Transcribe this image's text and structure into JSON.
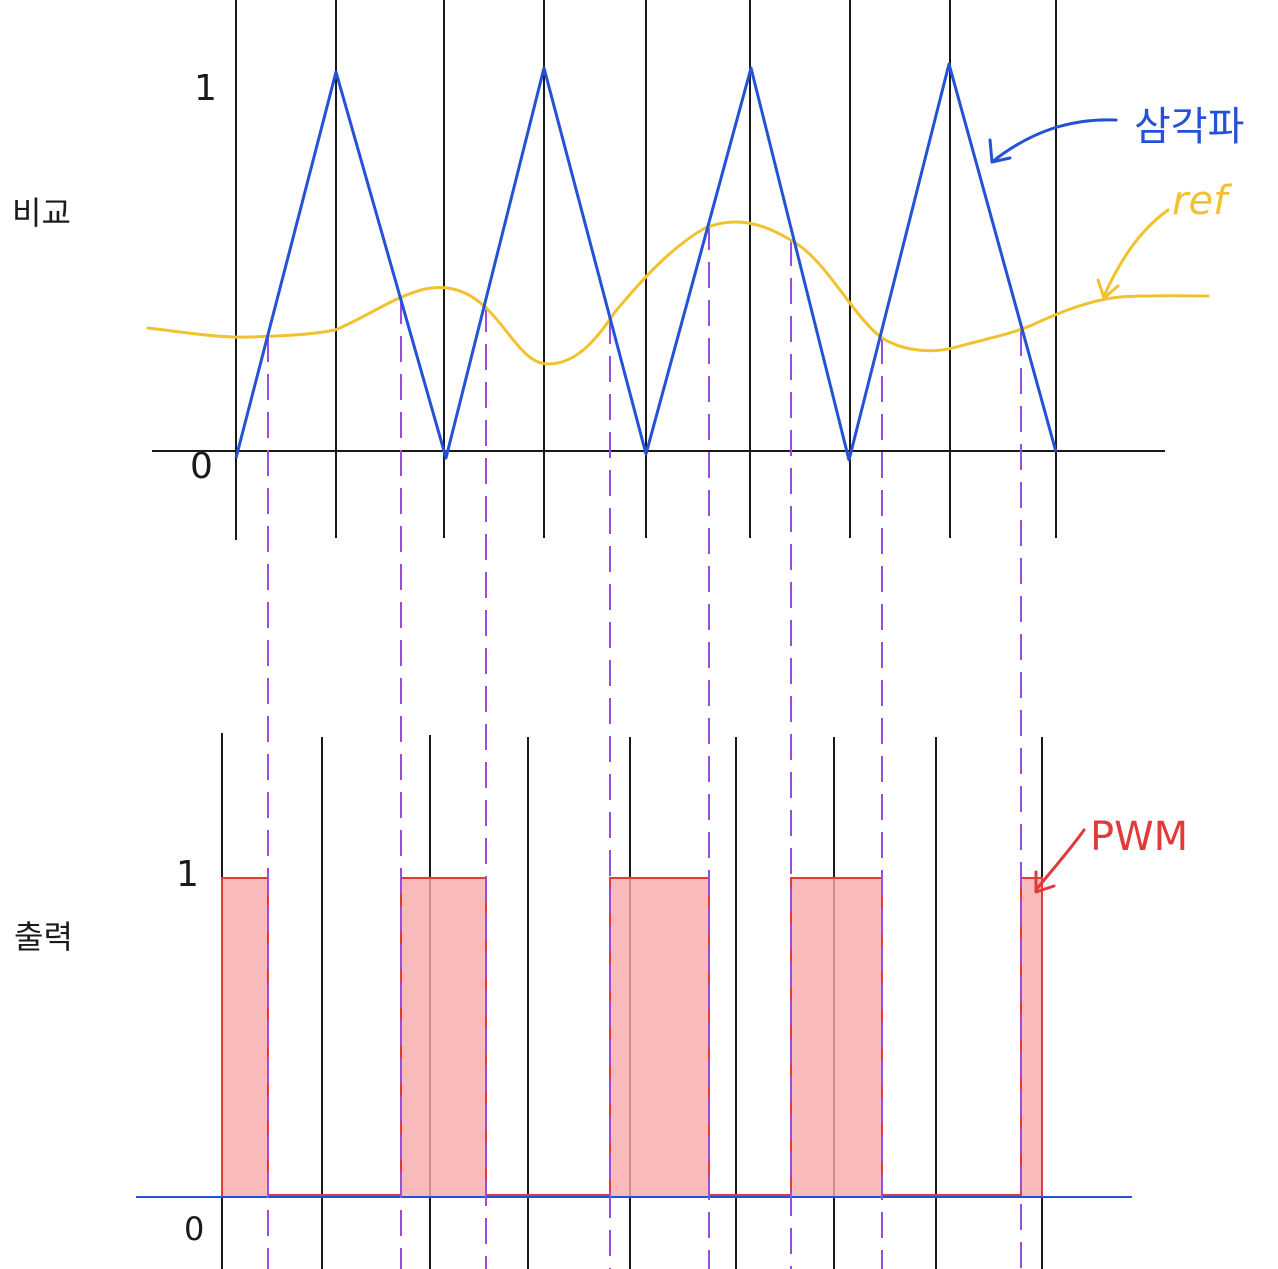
{
  "labels": {
    "compare_label": "비교",
    "output_label": "출력",
    "top_one": "1",
    "top_zero": "0",
    "bottom_one": "1",
    "bottom_zero": "0",
    "triangle_label": "삼각파",
    "ref_label": "ref",
    "pwm_label": "PWM"
  },
  "colors": {
    "grid": "#1a1a1a",
    "triangle": "#2452d6",
    "ref": "#f2c130",
    "dashed": "#9b4de0",
    "pwm_stroke": "#e03a3a",
    "pwm_fill": "#f6a9a9",
    "baseline": "#2452d6"
  },
  "chart_data": {
    "type": "line",
    "title": "",
    "top": {
      "name": "비교",
      "ylim": [
        0,
        1
      ],
      "triangle": {
        "name": "삼각파",
        "values": [
          0,
          1,
          0,
          1,
          0,
          1,
          0,
          1,
          0
        ]
      },
      "ref": {
        "name": "ref",
        "values": [
          0.3,
          0.3,
          0.31,
          0.35,
          0.43,
          0.44,
          0.3,
          0.23,
          0.32,
          0.52,
          0.6,
          0.55,
          0.3,
          0.25,
          0.3,
          0.4
        ]
      }
    },
    "bottom": {
      "name": "출력",
      "ylim": [
        0,
        1
      ],
      "pwm": {
        "name": "PWM",
        "pulses": [
          {
            "start": 0.0,
            "end": 0.5,
            "level": 1
          },
          {
            "start": 1.8,
            "end": 2.8,
            "level": 1
          },
          {
            "start": 3.8,
            "end": 5.0,
            "level": 1
          },
          {
            "start": 5.8,
            "end": 6.8,
            "level": 1
          },
          {
            "start": 7.8,
            "end": 8.0,
            "level": 1
          }
        ]
      }
    }
  }
}
